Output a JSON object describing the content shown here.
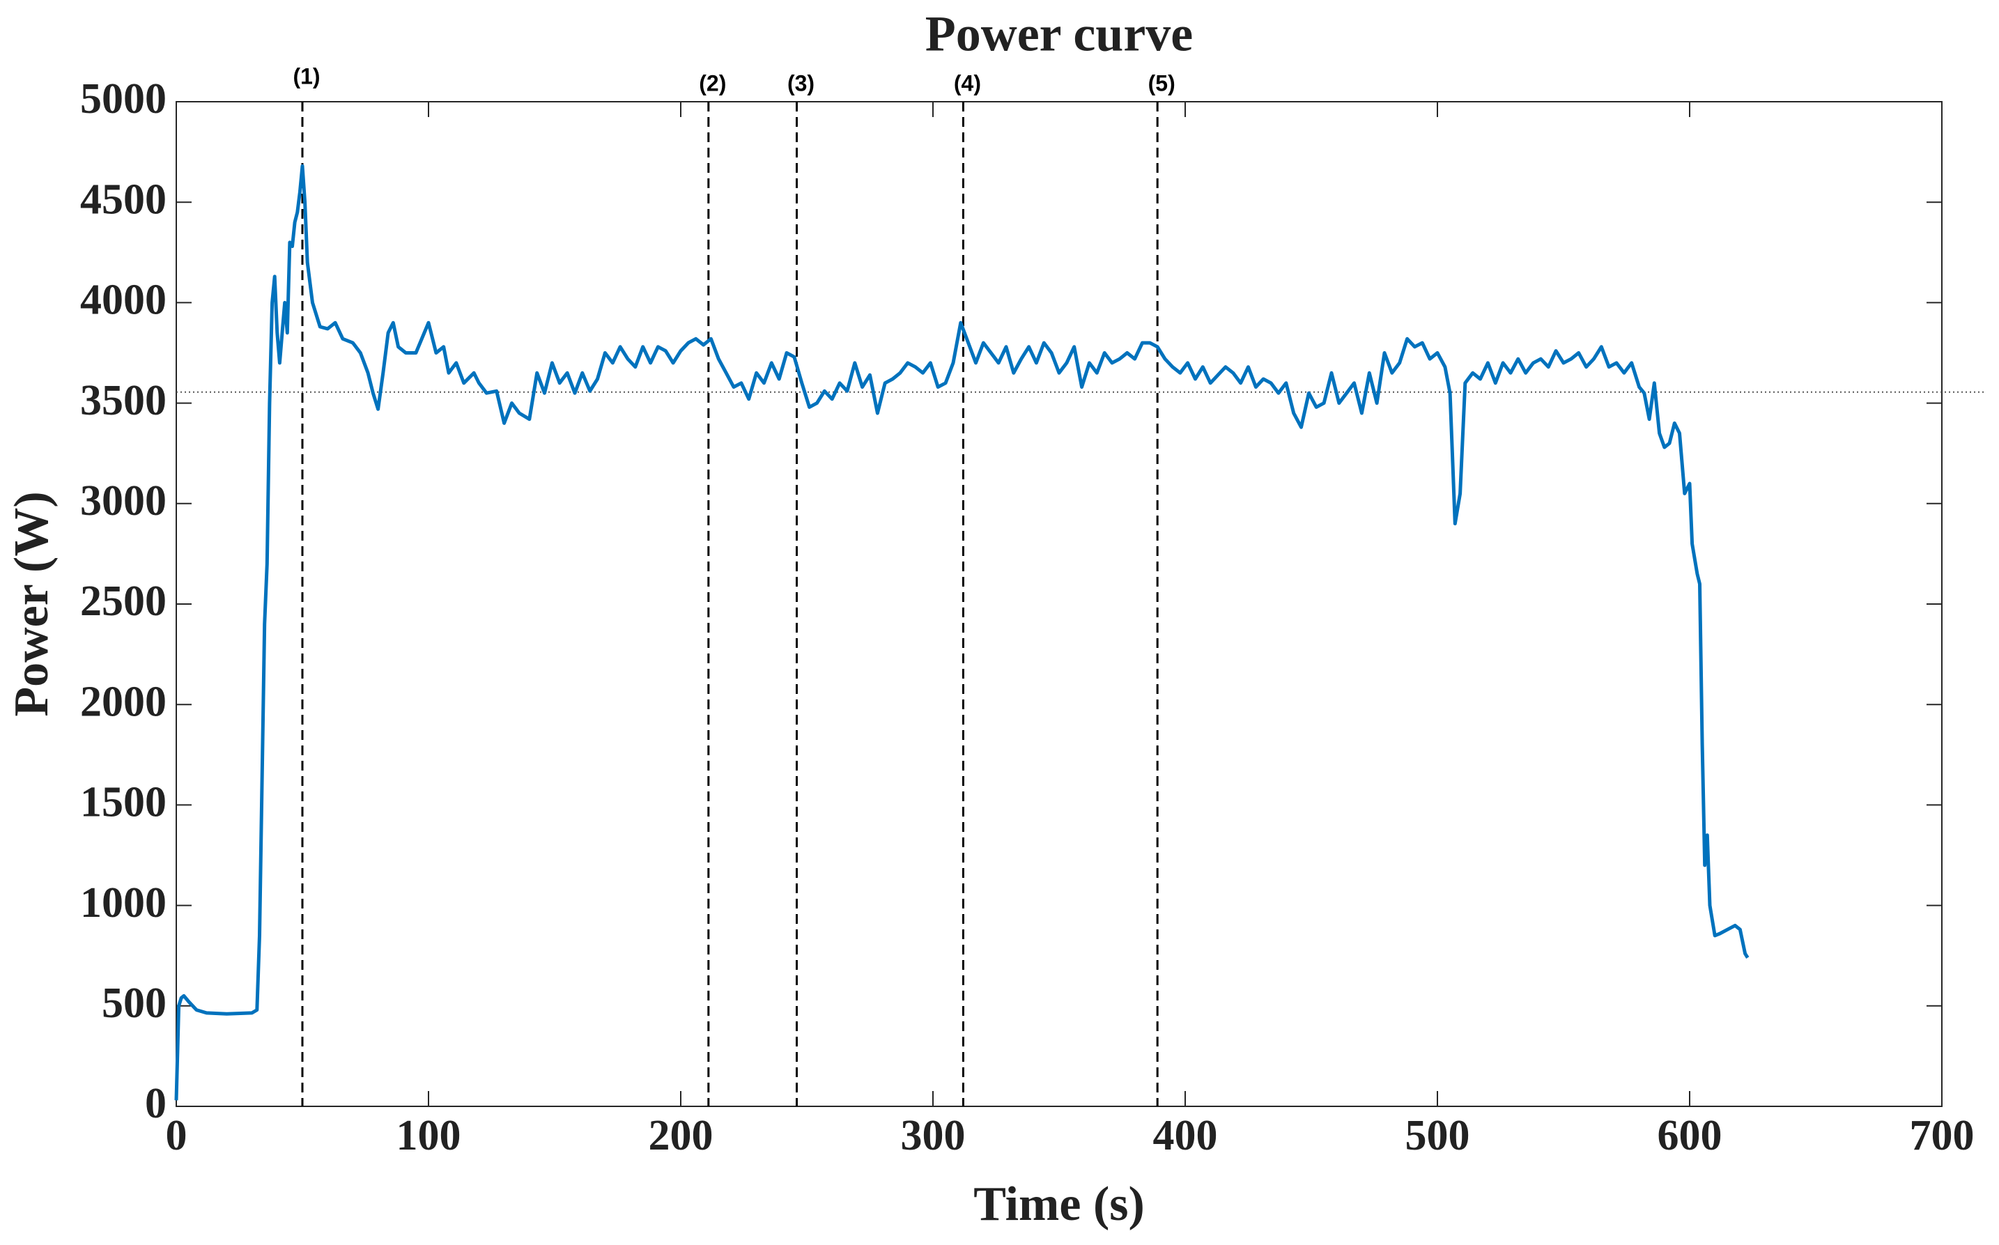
{
  "chart_data": {
    "type": "line",
    "title": "Power curve",
    "xlabel": "Time (s)",
    "ylabel": "Power (W)",
    "x": [
      0,
      1,
      2,
      3,
      5,
      8,
      12,
      20,
      30,
      32,
      33,
      35,
      36,
      37,
      38,
      39,
      40,
      41,
      42,
      43,
      44,
      45,
      46,
      47,
      48,
      49,
      50,
      51,
      52,
      54,
      57,
      60,
      63,
      66,
      70,
      73,
      76,
      78,
      80,
      82,
      84,
      86,
      88,
      91,
      95,
      100,
      103,
      106,
      108,
      111,
      114,
      118,
      120,
      123,
      127,
      130,
      133,
      136,
      140,
      143,
      146,
      149,
      152,
      155,
      158,
      161,
      164,
      167,
      170,
      173,
      176,
      179,
      182,
      185,
      188,
      191,
      194,
      197,
      200,
      203,
      206,
      209,
      212,
      215,
      218,
      221,
      224,
      227,
      230,
      233,
      236,
      239,
      242,
      245,
      248,
      251,
      254,
      257,
      260,
      263,
      266,
      269,
      272,
      275,
      278,
      281,
      284,
      287,
      290,
      293,
      296,
      299,
      302,
      305,
      308,
      311,
      314,
      317,
      320,
      323,
      326,
      329,
      332,
      335,
      338,
      341,
      344,
      347,
      350,
      353,
      356,
      359,
      362,
      365,
      368,
      371,
      374,
      377,
      380,
      383,
      386,
      389,
      392,
      395,
      398,
      401,
      404,
      407,
      410,
      413,
      416,
      419,
      422,
      425,
      428,
      431,
      434,
      437,
      440,
      443,
      446,
      449,
      452,
      455,
      458,
      461,
      464,
      467,
      470,
      473,
      476,
      479,
      482,
      485,
      488,
      491,
      494,
      497,
      500,
      503,
      505,
      507,
      509,
      511,
      514,
      517,
      520,
      523,
      526,
      529,
      532,
      535,
      538,
      541,
      544,
      547,
      550,
      553,
      556,
      559,
      562,
      565,
      568,
      571,
      574,
      577,
      580,
      582,
      584,
      586,
      588,
      590,
      592,
      594,
      596,
      598,
      600,
      601,
      603,
      604,
      605,
      606,
      607,
      608,
      610,
      612,
      615,
      618,
      620,
      622,
      623
    ],
    "values": [
      30,
      500,
      540,
      550,
      520,
      480,
      465,
      460,
      465,
      480,
      850,
      2400,
      2700,
      3500,
      4000,
      4130,
      3850,
      3700,
      3850,
      4000,
      3850,
      4300,
      4280,
      4400,
      4450,
      4550,
      4680,
      4500,
      4200,
      4000,
      3880,
      3870,
      3900,
      3820,
      3800,
      3750,
      3650,
      3550,
      3470,
      3650,
      3850,
      3900,
      3780,
      3750,
      3750,
      3900,
      3750,
      3780,
      3650,
      3700,
      3600,
      3650,
      3600,
      3550,
      3560,
      3400,
      3500,
      3450,
      3420,
      3650,
      3550,
      3700,
      3600,
      3650,
      3550,
      3650,
      3560,
      3620,
      3750,
      3700,
      3780,
      3720,
      3680,
      3780,
      3700,
      3780,
      3760,
      3700,
      3760,
      3800,
      3820,
      3790,
      3820,
      3720,
      3650,
      3580,
      3600,
      3520,
      3650,
      3600,
      3700,
      3620,
      3750,
      3730,
      3600,
      3480,
      3500,
      3560,
      3520,
      3600,
      3560,
      3700,
      3580,
      3640,
      3450,
      3600,
      3620,
      3650,
      3700,
      3680,
      3650,
      3700,
      3580,
      3600,
      3700,
      3900,
      3800,
      3700,
      3800,
      3750,
      3700,
      3780,
      3650,
      3720,
      3780,
      3700,
      3800,
      3750,
      3650,
      3700,
      3780,
      3580,
      3700,
      3650,
      3750,
      3700,
      3720,
      3750,
      3720,
      3800,
      3800,
      3780,
      3720,
      3680,
      3650,
      3700,
      3620,
      3680,
      3600,
      3640,
      3680,
      3650,
      3600,
      3680,
      3580,
      3620,
      3600,
      3550,
      3600,
      3450,
      3380,
      3550,
      3480,
      3500,
      3650,
      3500,
      3550,
      3600,
      3450,
      3650,
      3500,
      3750,
      3650,
      3700,
      3820,
      3780,
      3800,
      3720,
      3750,
      3680,
      3550,
      2900,
      3050,
      3600,
      3650,
      3620,
      3700,
      3600,
      3700,
      3650,
      3720,
      3650,
      3700,
      3720,
      3680,
      3760,
      3700,
      3720,
      3750,
      3680,
      3720,
      3780,
      3680,
      3700,
      3650,
      3700,
      3580,
      3550,
      3420,
      3600,
      3350,
      3280,
      3300,
      3400,
      3350,
      3050,
      3100,
      2800,
      2650,
      2600,
      1800,
      1200,
      1350,
      1000,
      850,
      860,
      880,
      900,
      880,
      760,
      740
    ],
    "color": "#0072bd",
    "xlim": [
      0,
      700
    ],
    "xticks": [
      0,
      100,
      200,
      300,
      400,
      500,
      600,
      700
    ],
    "ylim": [
      0,
      5000
    ],
    "yticks": [
      0,
      500,
      1000,
      1500,
      2000,
      2500,
      3000,
      3500,
      4000,
      4500,
      5000
    ],
    "markers": [
      {
        "x": 50,
        "label": "(1)"
      },
      {
        "x": 211,
        "label": "(2)"
      },
      {
        "x": 246,
        "label": "(3)"
      },
      {
        "x": 312,
        "label": "(4)"
      },
      {
        "x": 389,
        "label": "(5)"
      }
    ],
    "reference_line": 3555
  }
}
